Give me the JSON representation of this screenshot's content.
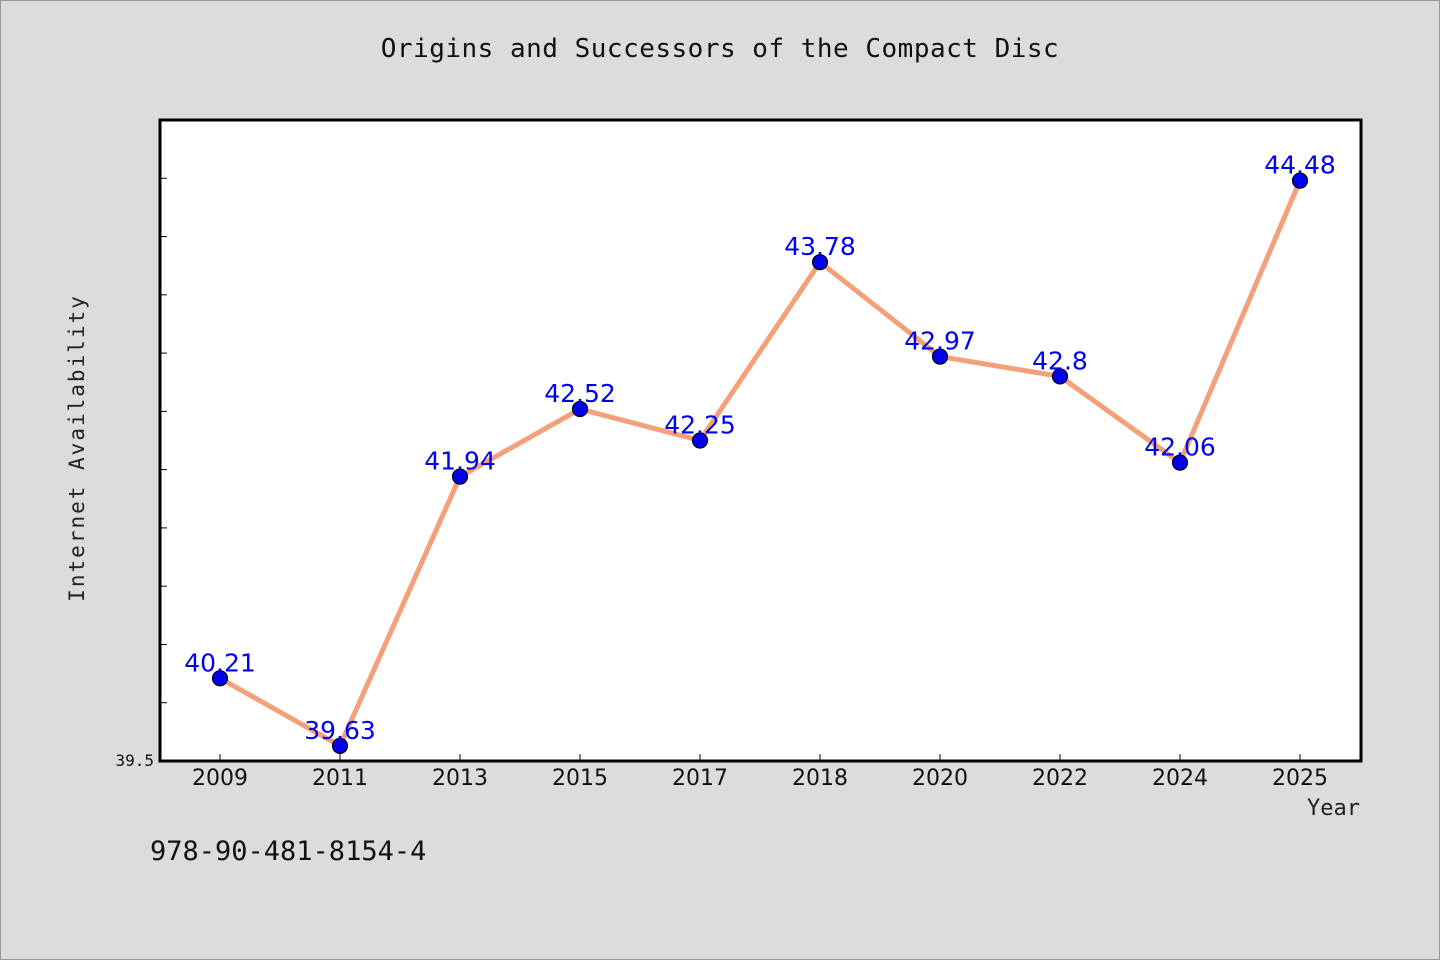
{
  "chart_data": {
    "type": "line",
    "title": "Origins and Successors of the Compact Disc",
    "xlabel": "Year",
    "ylabel": "Internet Availability",
    "categories": [
      "2009",
      "2011",
      "2013",
      "2015",
      "2017",
      "2018",
      "2020",
      "2022",
      "2024",
      "2025"
    ],
    "series": [
      {
        "values": [
          40.21,
          39.63,
          41.94,
          42.52,
          42.25,
          43.78,
          42.97,
          42.8,
          42.06,
          44.48
        ],
        "line_color": "#f4a07a",
        "marker_color": "#0000ee"
      }
    ],
    "data_labels": [
      "40.21",
      "39.63",
      "41.94",
      "42.52",
      "42.25",
      "43.78",
      "42.97",
      "42.8",
      "42.06",
      "44.48"
    ],
    "y_tick_labels": [
      "39.5"
    ],
    "ylim": [
      39.5,
      45.0
    ],
    "grid": false,
    "legend": "none"
  },
  "footer": {
    "isbn": "978-90-481-8154-4"
  },
  "colors": {
    "background": "#dcdcdc",
    "plot_background": "#ffffff",
    "line": "#f4a07a",
    "marker": "#0000ee",
    "label": "#0000ee"
  }
}
